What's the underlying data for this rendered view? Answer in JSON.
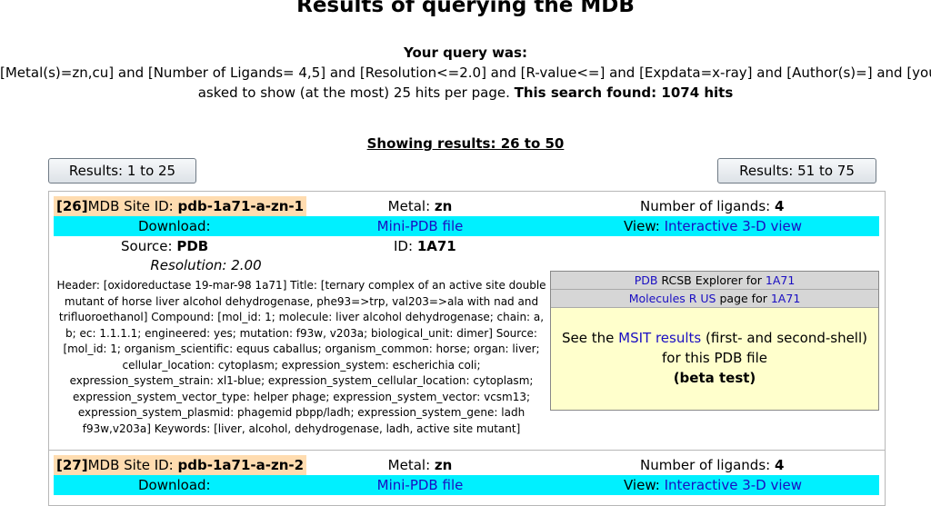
{
  "page": {
    "title": "Results of querying the MDB",
    "query_heading": "Your query was:",
    "query_text": "[Metal(s)=zn,cu] and [Number of Ligands= 4,5] and [Resolution<=2.0] and [R-value<=] and [Expdata=x-ray] and [Author(s)=] and [you",
    "query_text_2": "asked to show (at the most) 25 hits per page.",
    "found_text": "This search found: 1074 hits",
    "showing": "Showing results: 26 to 50",
    "prev_button": "Results: 1 to 25",
    "next_button": "Results: 51 to 75"
  },
  "results": [
    {
      "num": "[26]",
      "site_label": "MDB Site ID:",
      "site_id": "pdb-1a71-a-zn-1",
      "metal_label": "Metal:",
      "metal": "zn",
      "ligands_label": "Number of ligands:",
      "ligands": "4",
      "download_label": "Download:",
      "download_link": "Mini-PDB file",
      "view_label": "View:",
      "view_link": "Interactive 3-D view",
      "source_label": "Source:",
      "source": "PDB",
      "id_label": "ID:",
      "pdb_id": "1A71",
      "resolution": "Resolution: 2.00",
      "header_text": "Header: [oxidoreductase 19-mar-98 1a71] Title: [ternary complex of an active site double mutant of horse liver alcohol dehydrogenase, phe93=>trp, val203=>ala with nad and trifluoroethanol] Compound: [mol_id: 1; molecule: liver alcohol dehydrogenase; chain: a, b; ec: 1.1.1.1; engineered: yes; mutation: f93w, v203a; biological_unit: dimer] Source: [mol_id: 1; organism_scientific: equus caballus; organism_common: horse; organ: liver; cellular_location: cytoplasm; expression_system: escherichia coli; expression_system_strain: xl1-blue; expression_system_cellular_location: cytoplasm; expression_system_vector_type: helper phage; expression_system_vector: vcsm13; expression_system_plasmid: phagemid pbpp/ladh; expression_system_gene: ladh f93w,v203a] Keywords: [liver, alcohol, dehydrogenase, ladh, active site mutant]",
      "panel": {
        "pdb_link": "PDB",
        "pdb_text": "RCSB Explorer for",
        "pdb_id_link": "1A71",
        "mrus_link": "Molecules R US",
        "mrus_text": "page for",
        "mrus_id_link": "1A71",
        "msit_prefix": "See the",
        "msit_link": "MSIT results",
        "msit_suffix": "(first- and second-shell)",
        "msit_line2": "for this PDB file",
        "msit_line3": "(beta test)"
      }
    },
    {
      "num": "[27]",
      "site_label": "MDB Site ID:",
      "site_id": "pdb-1a71-a-zn-2",
      "metal_label": "Metal:",
      "metal": "zn",
      "ligands_label": "Number of ligands:",
      "ligands": "4",
      "download_label": "Download:",
      "download_link": "Mini-PDB file",
      "view_label": "View:",
      "view_link": "Interactive 3-D view"
    }
  ]
}
